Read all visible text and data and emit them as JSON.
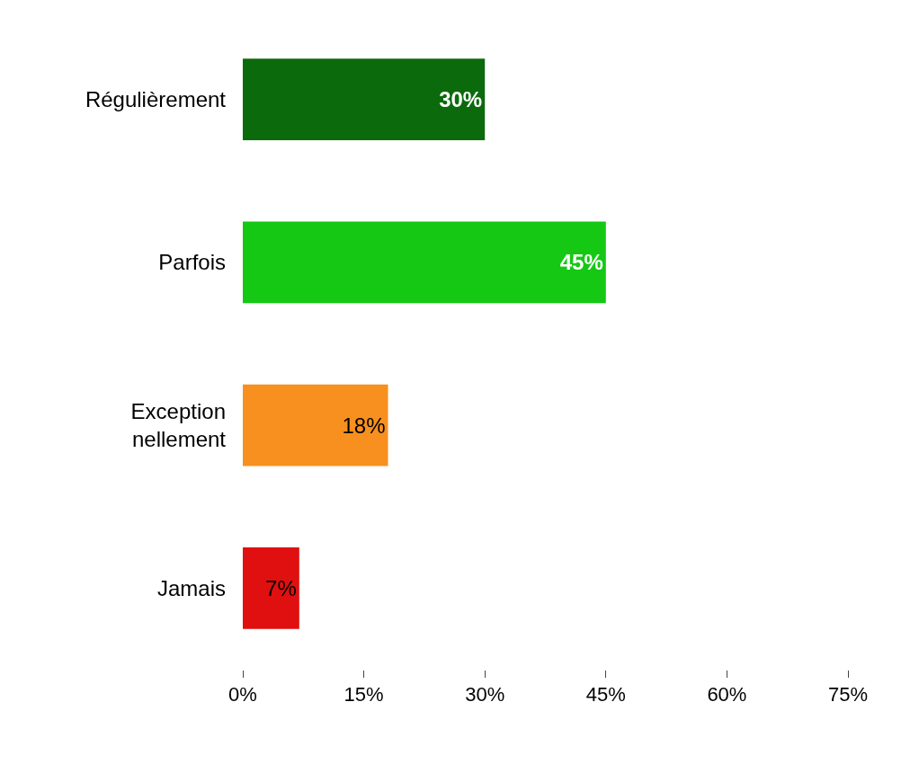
{
  "chart_data": {
    "type": "bar",
    "orientation": "horizontal",
    "categories": [
      "Régulièrement",
      "Parfois",
      "Exception\nnellement",
      "Jamais"
    ],
    "values": [
      30,
      45,
      18,
      7
    ],
    "colors": [
      "#0b6a0b",
      "#14c814",
      "#f7901e",
      "#e01010"
    ],
    "xlim": [
      0,
      75
    ],
    "xticks": [
      {
        "value": 0,
        "label": "0%"
      },
      {
        "value": 15,
        "label": "15%"
      },
      {
        "value": 30,
        "label": "30%"
      },
      {
        "value": 45,
        "label": "45%"
      },
      {
        "value": 60,
        "label": "60%"
      },
      {
        "value": 75,
        "label": "75%"
      }
    ],
    "value_labels": [
      "30%",
      "45%",
      "18%",
      "7%"
    ]
  }
}
